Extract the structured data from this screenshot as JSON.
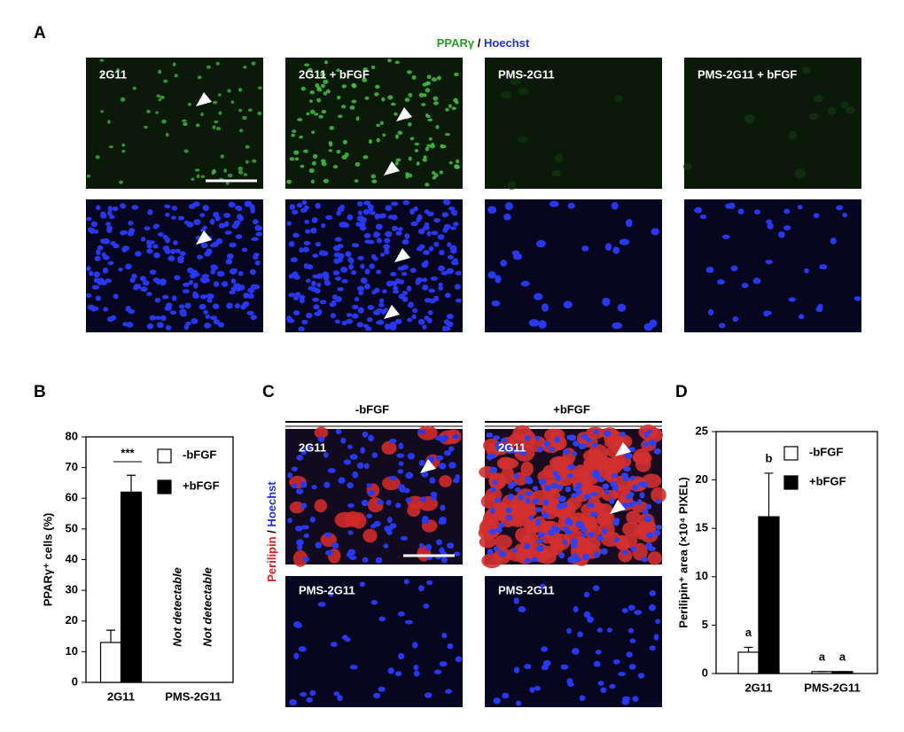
{
  "panel_labels": [
    "A",
    "B",
    "C",
    "D"
  ],
  "panel_a": {
    "stain": "PPARγ",
    "separator": "/",
    "counterstain": "Hoechst",
    "image_labels": [
      "2G11",
      "2G11 + bFGF",
      "PMS-2G11",
      "PMS-2G11 + bFGF"
    ]
  },
  "panel_c": {
    "conditions": [
      "-bFGF",
      "+bFGF"
    ],
    "stain": "Perilipin",
    "separator": "/",
    "counterstain": "Hoechst",
    "image_labels": [
      [
        "2G11",
        "PMS-2G11"
      ],
      [
        "2G11",
        "PMS-2G11"
      ]
    ]
  },
  "chart_data": [
    {
      "type": "bar",
      "ylabel": "PPARγ⁺ cells (%)",
      "categories": [
        "2G11",
        "PMS-2G11"
      ],
      "series": [
        {
          "name": "-bFGF",
          "color": "#ffffff",
          "values": [
            13,
            null
          ],
          "errors": [
            4,
            null
          ],
          "notes": [
            null,
            "Not detectable"
          ]
        },
        {
          "name": "+bFGF",
          "color": "#000000",
          "values": [
            62,
            null
          ],
          "errors": [
            5.5,
            null
          ],
          "notes": [
            null,
            "Not detectable"
          ]
        }
      ],
      "significance": "***",
      "ylim": [
        0,
        80
      ],
      "yticks": [
        0,
        10,
        20,
        30,
        40,
        50,
        60,
        70,
        80
      ]
    },
    {
      "type": "bar",
      "ylabel": "Perilipin⁺ area (×10⁴ PIXEL)",
      "categories": [
        "2G11",
        "PMS-2G11"
      ],
      "series": [
        {
          "name": "-bFGF",
          "color": "#ffffff",
          "values": [
            2.2,
            0.2
          ],
          "errors": [
            0.5,
            0
          ],
          "letters": [
            "a",
            "a"
          ]
        },
        {
          "name": "+bFGF",
          "color": "#000000",
          "values": [
            16.2,
            0.2
          ],
          "errors": [
            4.5,
            0
          ],
          "letters": [
            "b",
            "a"
          ]
        }
      ],
      "ylim": [
        0,
        25
      ],
      "yticks": [
        0,
        5,
        10,
        15,
        20,
        25
      ]
    }
  ]
}
